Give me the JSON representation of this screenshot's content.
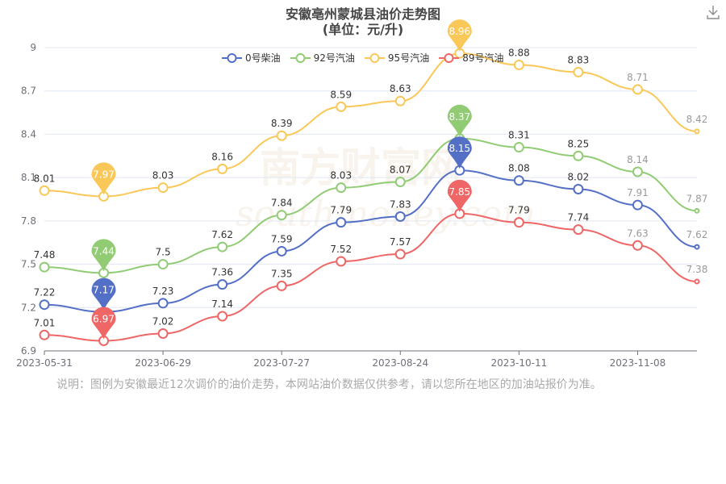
{
  "header": {
    "title": "安徽亳州蒙城县油价走势图",
    "subtitle": "(单位：元/升)"
  },
  "note": "说明：图例为安徽最近12次调价的油价走势，本网站油价数据仅供参考，请以您所在地区的加油站报价为准。",
  "watermark": {
    "cn": "南方财富网",
    "en": "southmoney.com"
  },
  "toolbar": {
    "download_icon": "download-icon"
  },
  "legend": [
    {
      "name": "0号柴油",
      "color": "#5470c6"
    },
    {
      "name": "92号汽油",
      "color": "#91cc75"
    },
    {
      "name": "95号汽油",
      "color": "#fac858"
    },
    {
      "name": "89号汽油",
      "color": "#ee6666"
    }
  ],
  "chart_data": {
    "type": "line",
    "title": "安徽亳州蒙城县油价走势图 (单位：元/升)",
    "x_tick_labels": [
      "2023-05-31",
      "2023-06-29",
      "2023-07-27",
      "2023-08-24",
      "2023-10-11",
      "2023-11-08"
    ],
    "y_ticks": [
      6.9,
      7.2,
      7.5,
      7.8,
      8.1,
      8.4,
      8.7,
      9
    ],
    "y_tick_labels": [
      "6.9",
      "7.2",
      "7.5",
      "7.8",
      "8.1",
      "8.4",
      "8.7",
      "9"
    ],
    "ylim": [
      6.9,
      9
    ],
    "grid": true,
    "legend_position": "top-center",
    "series": [
      {
        "name": "0号柴油",
        "color": "#5470c6",
        "values": [
          7.22,
          7.17,
          7.23,
          7.36,
          7.59,
          7.79,
          7.83,
          8.15,
          8.08,
          8.02,
          7.91,
          7.62
        ],
        "min_index": 1,
        "max_index": 7
      },
      {
        "name": "92号汽油",
        "color": "#91cc75",
        "values": [
          7.48,
          7.44,
          7.5,
          7.62,
          7.84,
          8.03,
          8.07,
          8.37,
          8.31,
          8.25,
          8.14,
          7.87
        ],
        "min_index": 1,
        "max_index": 7
      },
      {
        "name": "95号汽油",
        "color": "#fac858",
        "values": [
          8.01,
          7.97,
          8.03,
          8.16,
          8.39,
          8.59,
          8.63,
          8.96,
          8.88,
          8.83,
          8.71,
          8.42
        ],
        "min_index": 1,
        "max_index": 7
      },
      {
        "name": "89号汽油",
        "color": "#ee6666",
        "values": [
          7.01,
          6.97,
          7.02,
          7.14,
          7.35,
          7.52,
          7.57,
          7.85,
          7.79,
          7.74,
          7.63,
          7.38
        ],
        "min_index": 1,
        "max_index": 7
      }
    ]
  }
}
